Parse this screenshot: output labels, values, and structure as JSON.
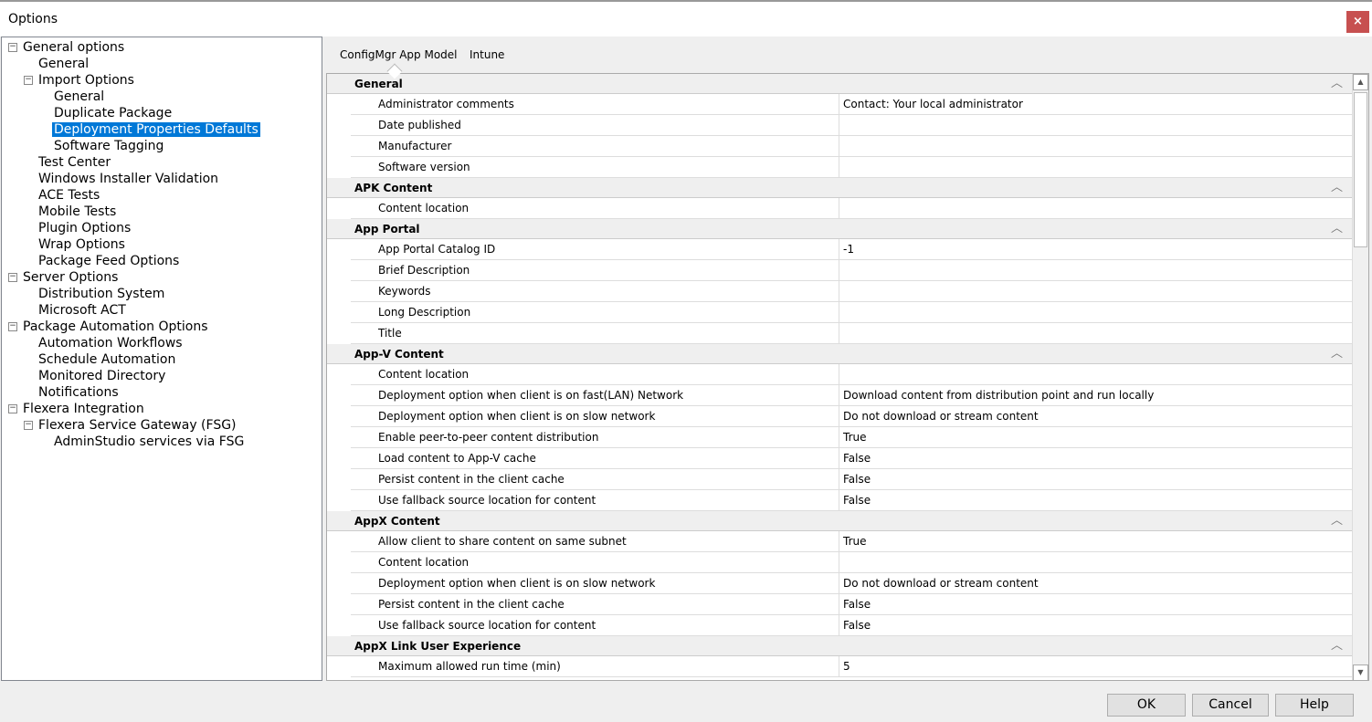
{
  "window": {
    "title": "Options",
    "close_glyph": "×"
  },
  "tree": [
    {
      "label": "General options",
      "level": 0,
      "expander": "minus"
    },
    {
      "label": "General",
      "level": 1
    },
    {
      "label": "Import Options",
      "level": 1,
      "expander": "minus"
    },
    {
      "label": "General",
      "level": 2
    },
    {
      "label": "Duplicate Package",
      "level": 2
    },
    {
      "label": "Deployment Properties Defaults",
      "level": 2,
      "selected": true
    },
    {
      "label": "Software Tagging",
      "level": 2
    },
    {
      "label": "Test Center",
      "level": 1
    },
    {
      "label": "Windows Installer Validation",
      "level": 1
    },
    {
      "label": "ACE Tests",
      "level": 1
    },
    {
      "label": "Mobile Tests",
      "level": 1
    },
    {
      "label": "Plugin Options",
      "level": 1
    },
    {
      "label": "Wrap Options",
      "level": 1
    },
    {
      "label": "Package Feed Options",
      "level": 1
    },
    {
      "label": "Server Options",
      "level": 0,
      "expander": "minus"
    },
    {
      "label": "Distribution System",
      "level": 1
    },
    {
      "label": "Microsoft ACT",
      "level": 1
    },
    {
      "label": "Package Automation Options",
      "level": 0,
      "expander": "minus"
    },
    {
      "label": "Automation Workflows",
      "level": 1
    },
    {
      "label": "Schedule Automation",
      "level": 1
    },
    {
      "label": "Monitored Directory",
      "level": 1
    },
    {
      "label": "Notifications",
      "level": 1
    },
    {
      "label": "Flexera Integration",
      "level": 0,
      "expander": "minus"
    },
    {
      "label": "Flexera Service Gateway (FSG)",
      "level": 1,
      "expander": "minus"
    },
    {
      "label": "AdminStudio services via FSG",
      "level": 2
    }
  ],
  "tabs": [
    {
      "label": "ConfigMgr App Model",
      "active": true
    },
    {
      "label": "Intune"
    }
  ],
  "grid": [
    {
      "category": "General",
      "rows": [
        [
          "Administrator comments",
          "Contact:  Your local administrator"
        ],
        [
          "Date published",
          ""
        ],
        [
          "Manufacturer",
          ""
        ],
        [
          "Software version",
          ""
        ]
      ]
    },
    {
      "category": "APK Content",
      "rows": [
        [
          "Content location",
          ""
        ]
      ]
    },
    {
      "category": "App Portal",
      "rows": [
        [
          "App Portal Catalog ID",
          "-1"
        ],
        [
          "Brief Description",
          ""
        ],
        [
          "Keywords",
          ""
        ],
        [
          "Long Description",
          ""
        ],
        [
          "Title",
          ""
        ]
      ]
    },
    {
      "category": "App-V Content",
      "rows": [
        [
          "Content location",
          ""
        ],
        [
          "Deployment option when client is on fast(LAN) Network",
          "Download content from distribution point and run locally"
        ],
        [
          "Deployment option when client is on slow network",
          "Do not download or stream content"
        ],
        [
          "Enable peer-to-peer content distribution",
          "True"
        ],
        [
          "Load content to App-V cache",
          "False"
        ],
        [
          "Persist content in the client cache",
          "False"
        ],
        [
          "Use fallback source location for content",
          "False"
        ]
      ]
    },
    {
      "category": "AppX Content",
      "rows": [
        [
          "Allow client to share content on same subnet",
          "True"
        ],
        [
          "Content location",
          ""
        ],
        [
          "Deployment option when client is on slow network",
          "Do not download or stream content"
        ],
        [
          "Persist content in the client cache",
          "False"
        ],
        [
          "Use fallback source location for content",
          "False"
        ]
      ]
    },
    {
      "category": "AppX Link User Experience",
      "rows": [
        [
          "Maximum allowed run time (min)",
          "5"
        ]
      ]
    }
  ],
  "buttons": {
    "ok": "OK",
    "cancel": "Cancel",
    "help": "Help"
  },
  "colors": {
    "selection": "#0078d7",
    "close": "#c75050"
  }
}
